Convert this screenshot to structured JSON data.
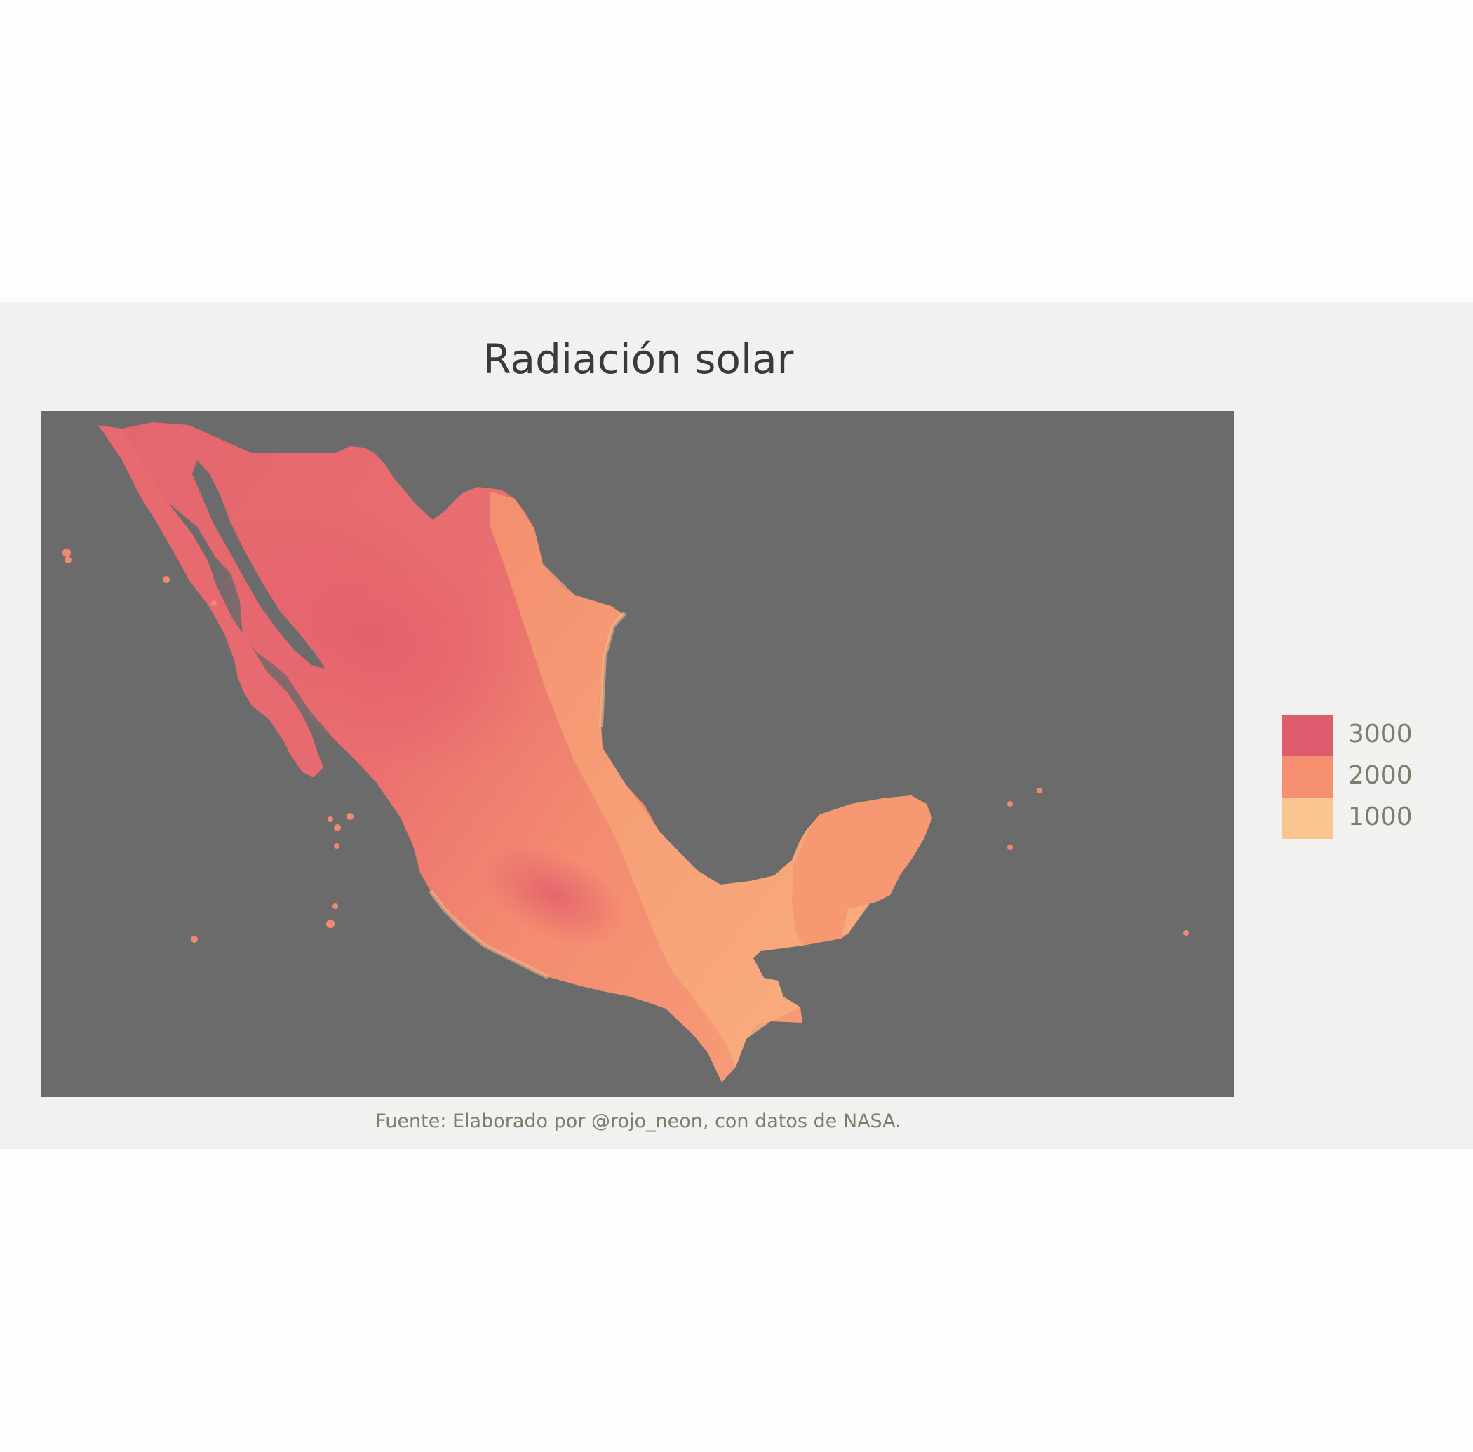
{
  "title": "Radiación solar",
  "caption": "Fuente: Elaborado por @rojo_neon, con datos de NASA.",
  "colors": {
    "page_background": "#fdfdfd",
    "figure_background": "#f1f1ef",
    "ocean": "#6b6b6b",
    "high": "#e0606e",
    "mid": "#f48f6f",
    "low": "#f9c28c"
  },
  "legend": {
    "items": [
      {
        "label": "3000",
        "color": "#df5b6e"
      },
      {
        "label": "2000",
        "color": "#f4906f"
      },
      {
        "label": "1000",
        "color": "#f9c591"
      }
    ]
  },
  "map": {
    "region": "Mexico",
    "variable": "Radiación solar",
    "pattern": "Higher values (≈3000) across the north and central highlands; lower values (≈1000–2000) along the Gulf coast and Yucatán peninsula"
  }
}
